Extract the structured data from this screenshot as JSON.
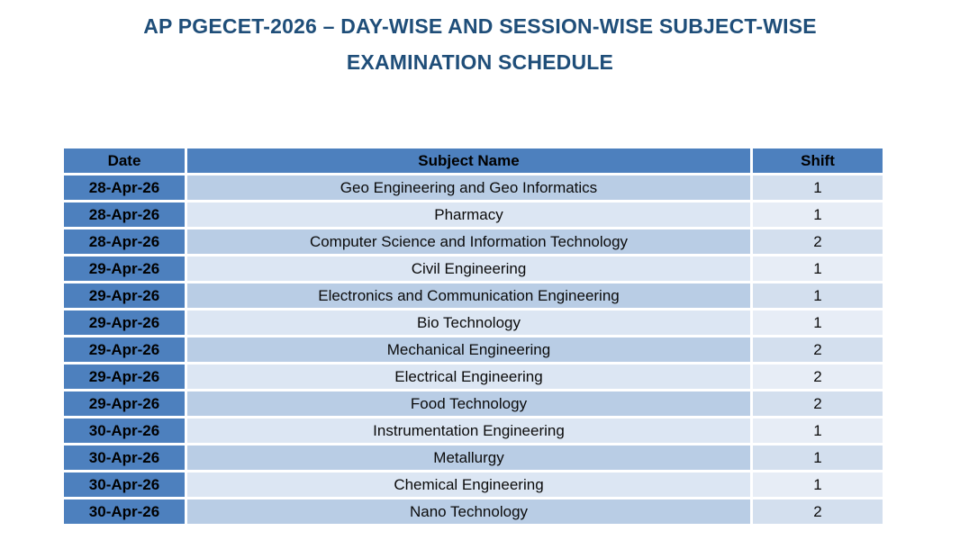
{
  "title": {
    "line1": "AP PGECET-2026 – DAY-WISE AND SESSION-WISE SUBJECT-WISE",
    "line2": "EXAMINATION SCHEDULE"
  },
  "table": {
    "headers": [
      "Date",
      "Subject Name",
      "Shift"
    ],
    "rows": [
      {
        "date": "28-Apr-26",
        "subject": "Geo Engineering and Geo Informatics",
        "shift": "1"
      },
      {
        "date": "28-Apr-26",
        "subject": "Pharmacy",
        "shift": "1"
      },
      {
        "date": "28-Apr-26",
        "subject": "Computer Science and Information Technology",
        "shift": "2"
      },
      {
        "date": "29-Apr-26",
        "subject": "Civil Engineering",
        "shift": "1"
      },
      {
        "date": "29-Apr-26",
        "subject": "Electronics and Communication Engineering",
        "shift": "1"
      },
      {
        "date": "29-Apr-26",
        "subject": "Bio Technology",
        "shift": "1"
      },
      {
        "date": "29-Apr-26",
        "subject": "Mechanical Engineering",
        "shift": "2"
      },
      {
        "date": "29-Apr-26",
        "subject": "Electrical Engineering",
        "shift": "2"
      },
      {
        "date": "29-Apr-26",
        "subject": "Food Technology",
        "shift": "2"
      },
      {
        "date": "30-Apr-26",
        "subject": "Instrumentation Engineering",
        "shift": "1"
      },
      {
        "date": "30-Apr-26",
        "subject": "Metallurgy",
        "shift": "1"
      },
      {
        "date": "30-Apr-26",
        "subject": "Chemical Engineering",
        "shift": "1"
      },
      {
        "date": "30-Apr-26",
        "subject": "Nano Technology",
        "shift": "2"
      }
    ]
  },
  "colors": {
    "title_color": "#1f4e79",
    "header_bg": "#4d80be",
    "date_bg": "#4d80be",
    "band_dark": "#b9cde5",
    "band_light": "#dce6f3",
    "shift_dark": "#d3dfee",
    "shift_light": "#e7edf6"
  }
}
